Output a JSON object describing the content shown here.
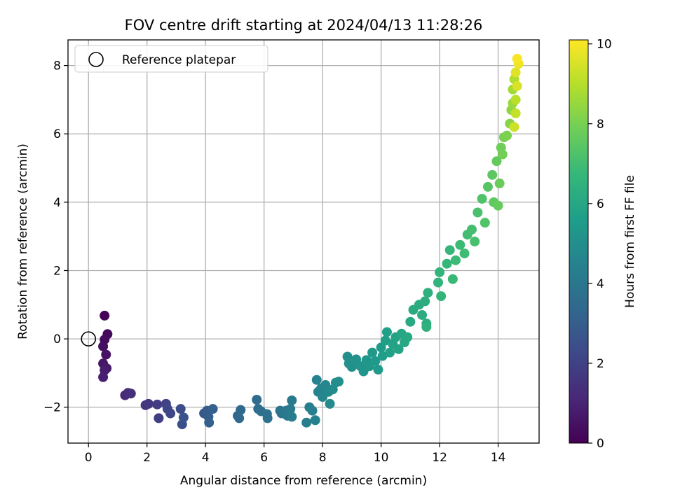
{
  "chart_data": {
    "type": "scatter",
    "title": "FOV centre drift starting at 2024/04/13 11:28:26",
    "xlabel": "Angular distance from reference (arcmin)",
    "ylabel": "Rotation from reference (arcmin)",
    "xlim": [
      -0.7,
      15.4
    ],
    "ylim": [
      -3.05,
      8.75
    ],
    "xticks": [
      0,
      2,
      4,
      6,
      8,
      10,
      12,
      14
    ],
    "yticks": [
      -2,
      0,
      2,
      4,
      6,
      8
    ],
    "xtick_labels": [
      "0",
      "2",
      "4",
      "6",
      "8",
      "10",
      "12",
      "14"
    ],
    "ytick_labels": [
      "−2",
      "0",
      "2",
      "4",
      "6",
      "8"
    ],
    "grid": true,
    "legend": {
      "position": "top-left",
      "entries": [
        {
          "label": "Reference platepar",
          "marker": "open-circle"
        }
      ]
    },
    "reference_point": {
      "x": 0,
      "y": 0
    },
    "colorbar": {
      "label": "Hours from first FF file",
      "colormap": "viridis",
      "range": [
        0,
        10.1
      ],
      "ticks": [
        0,
        2,
        4,
        6,
        8,
        10
      ],
      "tick_labels": [
        "0",
        "2",
        "4",
        "6",
        "8",
        "10"
      ]
    },
    "series": [
      {
        "columns": [
          "x",
          "y",
          "hours"
        ],
        "points": [
          [
            0.55,
            0.68,
            0.1
          ],
          [
            0.65,
            0.14,
            0.2
          ],
          [
            0.55,
            -0.02,
            0.3
          ],
          [
            0.5,
            -0.22,
            0.4
          ],
          [
            0.6,
            -0.46,
            0.5
          ],
          [
            0.5,
            -0.72,
            0.6
          ],
          [
            0.62,
            -0.86,
            0.7
          ],
          [
            0.55,
            -0.92,
            0.8
          ],
          [
            0.5,
            -1.12,
            0.9
          ],
          [
            1.25,
            -1.65,
            1.15
          ],
          [
            1.35,
            -1.58,
            1.25
          ],
          [
            1.45,
            -1.6,
            1.35
          ],
          [
            1.95,
            -1.94,
            1.55
          ],
          [
            2.05,
            -1.9,
            1.65
          ],
          [
            2.35,
            -1.92,
            1.8
          ],
          [
            2.4,
            -2.32,
            1.9
          ],
          [
            2.65,
            -1.9,
            2.0
          ],
          [
            2.7,
            -2.05,
            2.1
          ],
          [
            2.8,
            -2.18,
            2.2
          ],
          [
            3.15,
            -2.05,
            2.4
          ],
          [
            3.2,
            -2.5,
            2.5
          ],
          [
            3.25,
            -2.3,
            2.6
          ],
          [
            3.95,
            -2.18,
            2.8
          ],
          [
            4.05,
            -2.1,
            2.9
          ],
          [
            4.1,
            -2.28,
            3.0
          ],
          [
            4.12,
            -2.45,
            3.05
          ],
          [
            4.25,
            -2.05,
            3.1
          ],
          [
            5.1,
            -2.25,
            3.3
          ],
          [
            5.15,
            -2.32,
            3.35
          ],
          [
            5.2,
            -2.08,
            3.4
          ],
          [
            5.75,
            -1.78,
            3.55
          ],
          [
            5.8,
            -2.05,
            3.6
          ],
          [
            5.9,
            -2.12,
            3.65
          ],
          [
            6.1,
            -2.2,
            3.7
          ],
          [
            6.12,
            -2.32,
            3.75
          ],
          [
            6.55,
            -2.1,
            3.9
          ],
          [
            6.6,
            -2.18,
            3.95
          ],
          [
            6.75,
            -2.1,
            4.0
          ],
          [
            6.8,
            -2.25,
            4.05
          ],
          [
            6.9,
            -2.05,
            4.1
          ],
          [
            6.95,
            -1.8,
            4.15
          ],
          [
            6.95,
            -2.28,
            4.2
          ],
          [
            7.45,
            -2.45,
            4.3
          ],
          [
            7.55,
            -2.0,
            4.35
          ],
          [
            7.65,
            -2.1,
            4.4
          ],
          [
            7.75,
            -2.38,
            4.45
          ],
          [
            7.8,
            -1.2,
            4.5
          ],
          [
            7.85,
            -1.55,
            4.55
          ],
          [
            7.95,
            -1.45,
            4.6
          ],
          [
            8.0,
            -1.7,
            4.65
          ],
          [
            8.1,
            -1.35,
            4.7
          ],
          [
            8.2,
            -1.55,
            4.75
          ],
          [
            8.25,
            -1.9,
            4.8
          ],
          [
            8.35,
            -1.48,
            4.85
          ],
          [
            8.45,
            -1.28,
            4.9
          ],
          [
            8.55,
            -1.25,
            4.95
          ],
          [
            8.85,
            -0.52,
            5.0
          ],
          [
            8.9,
            -0.72,
            5.05
          ],
          [
            9.0,
            -0.82,
            5.1
          ],
          [
            9.15,
            -0.6,
            5.15
          ],
          [
            9.3,
            -0.8,
            5.2
          ],
          [
            9.4,
            -0.95,
            5.25
          ],
          [
            9.5,
            -0.62,
            5.3
          ],
          [
            9.6,
            -0.8,
            5.35
          ],
          [
            9.7,
            -0.4,
            5.4
          ],
          [
            9.8,
            -0.65,
            5.45
          ],
          [
            9.9,
            -0.9,
            5.5
          ],
          [
            10.0,
            -0.25,
            5.55
          ],
          [
            10.05,
            -0.5,
            5.6
          ],
          [
            10.15,
            -0.05,
            5.65
          ],
          [
            10.2,
            0.2,
            5.7
          ],
          [
            10.3,
            -0.4,
            5.75
          ],
          [
            10.4,
            -0.15,
            5.8
          ],
          [
            10.5,
            0.05,
            5.85
          ],
          [
            10.6,
            -0.3,
            5.9
          ],
          [
            10.7,
            0.15,
            5.95
          ],
          [
            10.8,
            -0.1,
            6.0
          ],
          [
            10.9,
            0.05,
            6.05
          ],
          [
            11.0,
            0.5,
            6.1
          ],
          [
            11.1,
            0.85,
            6.15
          ],
          [
            11.3,
            1.0,
            6.2
          ],
          [
            11.4,
            0.7,
            6.25
          ],
          [
            11.5,
            1.1,
            6.3
          ],
          [
            11.55,
            0.45,
            6.35
          ],
          [
            11.6,
            1.35,
            6.4
          ],
          [
            11.55,
            0.35,
            6.45
          ],
          [
            11.95,
            1.65,
            6.55
          ],
          [
            12.0,
            1.95,
            6.6
          ],
          [
            12.05,
            1.25,
            6.65
          ],
          [
            12.25,
            2.2,
            6.7
          ],
          [
            12.35,
            2.6,
            6.75
          ],
          [
            12.45,
            1.75,
            6.8
          ],
          [
            12.55,
            2.3,
            6.85
          ],
          [
            12.7,
            2.75,
            6.9
          ],
          [
            12.85,
            2.5,
            6.95
          ],
          [
            12.95,
            3.05,
            7.0
          ],
          [
            13.1,
            3.2,
            7.05
          ],
          [
            13.2,
            2.85,
            7.1
          ],
          [
            13.3,
            3.7,
            7.15
          ],
          [
            13.45,
            4.1,
            7.25
          ],
          [
            13.55,
            3.4,
            7.3
          ],
          [
            13.65,
            4.45,
            7.4
          ],
          [
            13.8,
            4.8,
            7.5
          ],
          [
            13.85,
            4.0,
            7.55
          ],
          [
            13.95,
            5.2,
            7.65
          ],
          [
            14.0,
            3.9,
            7.7
          ],
          [
            14.05,
            4.55,
            7.75
          ],
          [
            14.1,
            5.6,
            7.85
          ],
          [
            14.15,
            5.4,
            7.9
          ],
          [
            14.2,
            5.9,
            8.0
          ],
          [
            14.3,
            5.95,
            8.1
          ],
          [
            14.4,
            6.3,
            8.25
          ],
          [
            14.45,
            6.7,
            8.4
          ],
          [
            14.5,
            6.9,
            8.55
          ],
          [
            14.5,
            7.3,
            8.7
          ],
          [
            14.55,
            7.6,
            8.9
          ],
          [
            14.6,
            7.0,
            9.05
          ],
          [
            14.6,
            6.6,
            9.2
          ],
          [
            14.55,
            6.2,
            9.35
          ],
          [
            14.65,
            7.4,
            9.5
          ],
          [
            14.6,
            7.8,
            9.65
          ],
          [
            14.7,
            8.05,
            9.85
          ],
          [
            14.65,
            8.2,
            10.0
          ]
        ]
      }
    ]
  }
}
